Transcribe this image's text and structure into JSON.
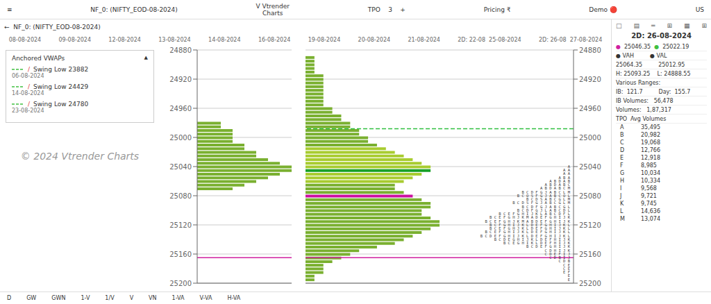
{
  "chart_data": [
    {
      "type": "bar",
      "orientation": "horizontal",
      "y": [
        25070,
        25065,
        25060,
        25055,
        25050,
        25045,
        25040,
        25035,
        25030,
        25025,
        25020,
        25015,
        25010,
        25005,
        25000,
        24995,
        24990,
        24985,
        24980
      ],
      "values": [
        3,
        4,
        5,
        6,
        7,
        8,
        8,
        7,
        6,
        5,
        5,
        4,
        4,
        3,
        3,
        3,
        3,
        2,
        2
      ],
      "color": "#7ab030",
      "xlim": [
        0,
        8
      ],
      "ylim": [
        24880,
        25200
      ],
      "yticks": [
        24880,
        24920,
        24960,
        25000,
        25040,
        25080,
        25120,
        25160,
        25200
      ],
      "tick_labels": "y",
      "grid": true,
      "reference_lines": [
        {
          "value": 25165,
          "color": "#d020a0",
          "line_style": "solid"
        }
      ]
    },
    {
      "type": "bar",
      "orientation": "horizontal",
      "title": "2D: 26-08-2024",
      "y": [
        25195,
        25190,
        25185,
        25180,
        25175,
        25170,
        25165,
        25160,
        25155,
        25150,
        25145,
        25140,
        25135,
        25130,
        25125,
        25120,
        25115,
        25110,
        25105,
        25100,
        25095,
        25090,
        25085,
        25080,
        25075,
        25070,
        25065,
        25060,
        25055,
        25050,
        25045,
        25040,
        25035,
        25030,
        25025,
        25020,
        25015,
        25010,
        25005,
        25000,
        24995,
        24990,
        24985,
        24980,
        24975,
        24970,
        24965,
        24960,
        24955,
        24950,
        24945,
        24940,
        24935,
        24930,
        24925,
        24920,
        24915,
        24910,
        24905,
        24900,
        24895,
        24890
      ],
      "values": [
        1,
        1,
        2,
        2,
        2,
        3,
        4,
        5,
        6,
        8,
        10,
        11,
        12,
        13,
        14,
        15,
        15,
        14,
        13,
        13,
        14,
        14,
        13,
        12,
        11,
        10,
        10,
        11,
        12,
        13,
        14,
        14,
        13,
        12,
        11,
        10,
        9,
        8,
        7,
        7,
        6,
        6,
        5,
        5,
        4,
        4,
        3,
        3,
        2,
        2,
        2,
        2,
        2,
        2,
        2,
        2,
        2,
        1,
        1,
        1,
        1,
        1
      ],
      "colors": [
        "#7ab030",
        "#7ab030",
        "#7ab030",
        "#7ab030",
        "#7ab030",
        "#7ab030",
        "#7ab030",
        "#7ab030",
        "#7ab030",
        "#7ab030",
        "#7ab030",
        "#7ab030",
        "#7ab030",
        "#7ab030",
        "#7ab030",
        "#7ab030",
        "#7ab030",
        "#7ab030",
        "#7ab030",
        "#7ab030",
        "#7ab030",
        "#7ab030",
        "#7ab030",
        "#cc10a0",
        "#7ab030",
        "#7ab030",
        "#7ab030",
        "#a8cc30",
        "#a8cc30",
        "#a8cc30",
        "#18a028",
        "#a8cc30",
        "#a8cc30",
        "#a8cc30",
        "#a8cc30",
        "#a8cc30",
        "#a8cc30",
        "#7ab030",
        "#7ab030",
        "#7ab030",
        "#7ab030",
        "#7ab030",
        "#7ab030",
        "#7ab030",
        "#7ab030",
        "#7ab030",
        "#7ab030",
        "#7ab030",
        "#7ab030",
        "#7ab030",
        "#7ab030",
        "#7ab030",
        "#7ab030",
        "#7ab030",
        "#7ab030",
        "#7ab030",
        "#7ab030",
        "#7ab030",
        "#7ab030",
        "#7ab030",
        "#7ab030",
        "#7ab030"
      ],
      "xlim": [
        0,
        30
      ],
      "ylim": [
        24880,
        25200
      ],
      "yticks": [
        24880,
        24920,
        24960,
        25000,
        25040,
        25080,
        25120,
        25160,
        25200
      ],
      "tick_labels": "y",
      "grid": true,
      "reference_lines": [
        {
          "value": 25165,
          "color": "#d020a0",
          "line_style": "solid"
        },
        {
          "value": 24988,
          "color": "#30c040",
          "line_style": "dashed"
        }
      ],
      "annotations": [
        {
          "y": 25195,
          "text": "E"
        },
        {
          "y": 25190,
          "text": "E"
        },
        {
          "y": 25185,
          "text": "E F"
        },
        {
          "y": 25180,
          "text": "C E"
        },
        {
          "y": 25175,
          "text": "C E"
        },
        {
          "y": 25170,
          "text": "C D B"
        },
        {
          "y": 25165,
          "text": "C D B I J"
        },
        {
          "y": 25160,
          "text": "C D E F I J"
        },
        {
          "y": 25155,
          "text": "C D H I J K"
        },
        {
          "y": 25150,
          "text": "B C D E F G H I J K"
        },
        {
          "y": 25145,
          "text": "B C E G H I K L D E F H I J K"
        },
        {
          "y": 25140,
          "text": "B C D E G H I J K L D E F H I J K"
        },
        {
          "y": 25135,
          "text": "B C D E F G H I J K L D E F G H I J K L"
        },
        {
          "y": 25130,
          "text": "B C E F G H I J K L D E F G H I J K L"
        },
        {
          "y": 25125,
          "text": "B C E F G H J K L D E F G H I J K L"
        },
        {
          "y": 25120,
          "text": "B C F G H I J K L D E F G H I J K L"
        },
        {
          "y": 25115,
          "text": "B C E F G H J K M A B D E F G H I J K"
        },
        {
          "y": 25110,
          "text": "B C E F G H J K M A D E F G H I J K"
        },
        {
          "y": 25105,
          "text": "B C E F G H I J K L A B C D F L"
        },
        {
          "y": 25100,
          "text": "B C D F G J L A B C D L"
        },
        {
          "y": 25095,
          "text": "B C D F G J A B C G L"
        },
        {
          "y": 25090,
          "text": "B C D S F G J A B C G L M"
        },
        {
          "y": 25085,
          "text": "B C D S A B C G L M"
        },
        {
          "y": 25080,
          "text": "B C O S F G J A B C O L"
        },
        {
          "y": 25075,
          "text": "B C D F G J A B C L M"
        },
        {
          "y": 25070,
          "text": "A B D A B C M"
        },
        {
          "y": 25065,
          "text": "A B D A B C"
        },
        {
          "y": 25060,
          "text": "A B D A B"
        },
        {
          "y": 25055,
          "text": "A B A"
        },
        {
          "y": 25050,
          "text": "A A"
        },
        {
          "y": 25045,
          "text": "A A"
        },
        {
          "y": 25040,
          "text": "A"
        }
      ]
    }
  ],
  "header": [
    "≡",
    "NF_0: (NIFTY_EOD-08-2024)",
    "V Vtrender\nCharts",
    "TPO    3    +",
    "Pricing ₹",
    "Demo 🔴",
    "US"
  ],
  "toolbar": "←  NF_0: (NIFTY_EOD-08-2024)",
  "footer": [
    "D",
    "GW",
    "GWN",
    "1-V",
    "1/V",
    "V",
    "VN",
    "1-VA",
    "V-VA",
    "H-VA"
  ],
  "dates": [
    "08-08-2024",
    "09-08-2024",
    "12-08-2024",
    "13-08-2024",
    "14-08-2024",
    "16-08-2024",
    "19-08-2024",
    "20-08-2024",
    "21-08-2024",
    "2D: 22-08  25-08-2024",
    "2D: 26-08  27-08-2024"
  ],
  "watermark": "© 2024 Vtrender Charts",
  "legend_box": {
    "title": "Anchored VWAPs",
    "icon": "▲",
    "slash": "/",
    "line_color": "#40c040",
    "slash_color": "#e04040",
    "items": [
      {
        "date": "06-08-2024",
        "label": "Swing Low 23882"
      },
      {
        "date": "14-08-2024",
        "label": "Swing Low 24429"
      },
      {
        "date": "23-08-2024",
        "label": "Swing Low 24780"
      }
    ]
  },
  "icons": [
    "□",
    "▤",
    "═",
    "⊞",
    "▦",
    "⊞"
  ],
  "panel": [
    [
      {
        "text": "●",
        "color": "#d020a0"
      },
      {
        "text": "25046.35"
      },
      {
        "text": "●",
        "color": "#40c040"
      },
      {
        "text": "25022.19"
      }
    ],
    [
      {
        "text": "● VAH"
      },
      {
        "text": "● VAL"
      }
    ],
    [
      {
        "text": "25064.35"
      },
      {
        "text": "25012.95"
      }
    ],
    [
      {
        "text": "H: 25093.25    L: 24888.55"
      }
    ],
    [
      {
        "text": "Various Ranges:"
      }
    ],
    [
      {
        "text": "IB:  121.7"
      },
      {
        "text": "Day:  155.7"
      }
    ],
    [
      {
        "text": "IB Volumes:   56,478"
      }
    ],
    [
      {
        "text": "Volumes:   1,87,317"
      }
    ],
    [
      {
        "text": "TPO  Avg Volumes"
      }
    ]
  ],
  "tpo_table": {
    "letters": [
      "A",
      "B",
      "C",
      "D",
      "E",
      "F",
      "G",
      "H",
      "I",
      "J",
      "K",
      "L",
      "M"
    ],
    "volumes": [
      {
        "value": 35495,
        "label": "35,495"
      },
      {
        "value": 20982,
        "label": "20,982"
      },
      {
        "value": 19068,
        "label": "19,068"
      },
      {
        "value": 12766,
        "label": "12,766"
      },
      {
        "value": 12918,
        "label": "12,918"
      },
      {
        "value": 8985,
        "label": "8,985"
      },
      {
        "value": 10034,
        "label": "10,034"
      },
      {
        "value": 10334,
        "label": "10,334"
      },
      {
        "value": 9568,
        "label": "9,568"
      },
      {
        "value": 9721,
        "label": "9,721"
      },
      {
        "value": 9745,
        "label": "9,745"
      },
      {
        "value": 14636,
        "label": "14,636"
      },
      {
        "value": 13074,
        "label": "13,074"
      }
    ]
  }
}
